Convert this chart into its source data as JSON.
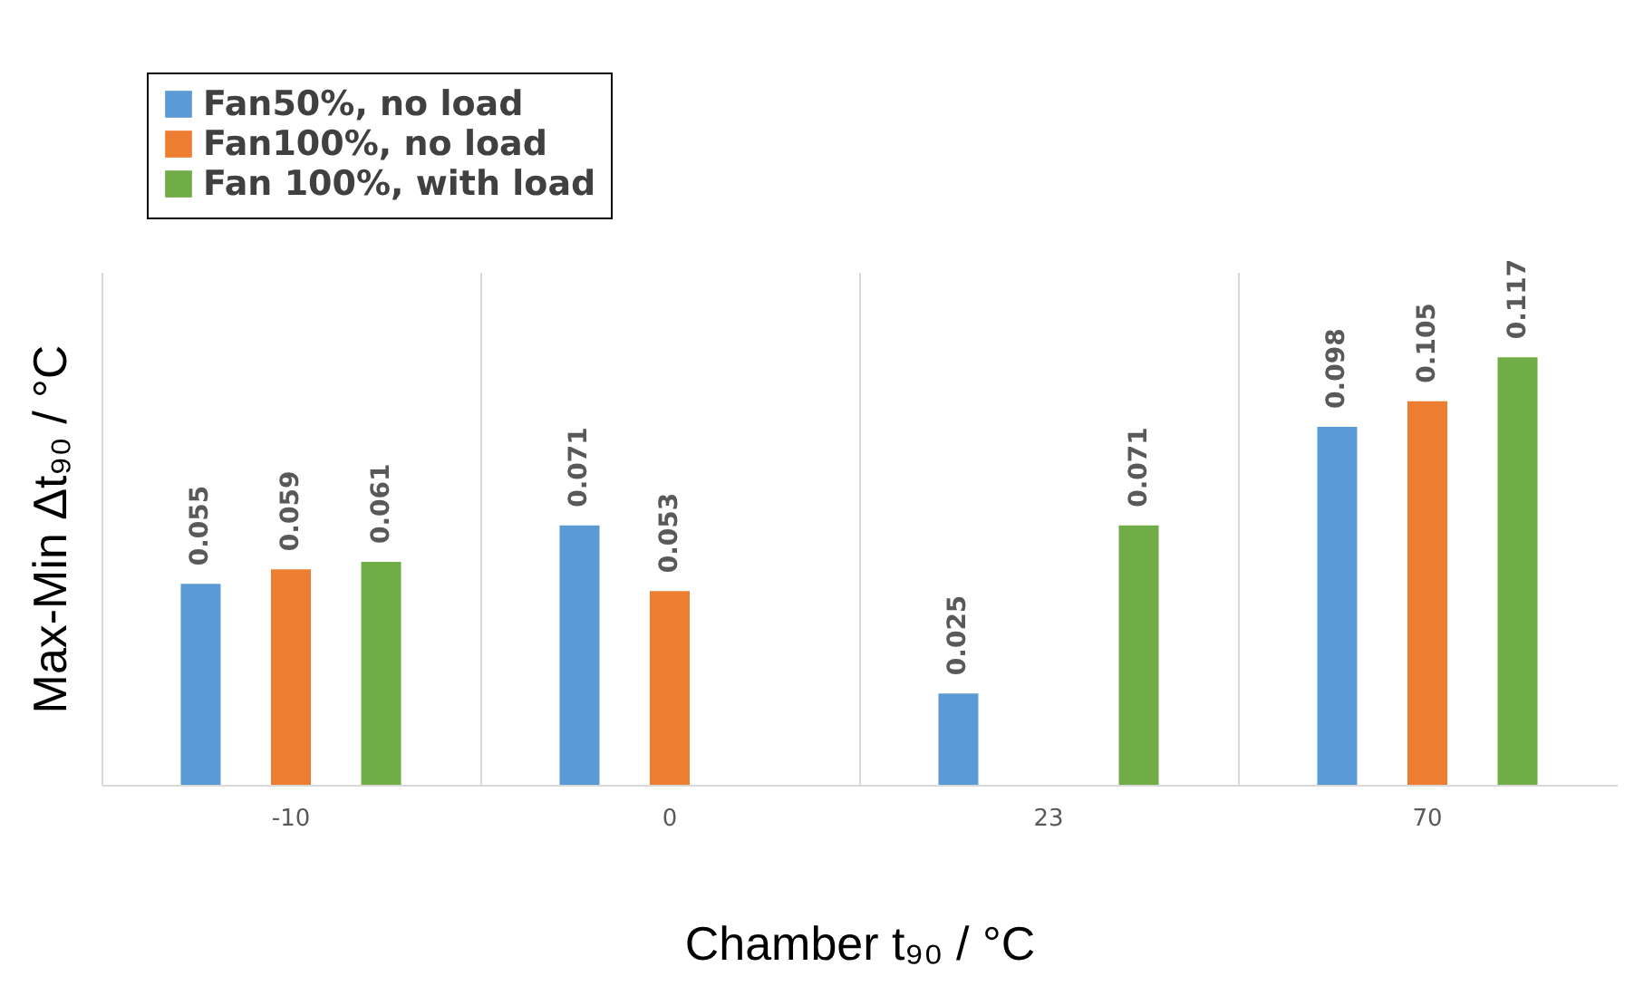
{
  "chart_data": {
    "type": "bar",
    "xlabel": "Chamber t₉₀ / °C",
    "ylabel": "Max-Min Δt₉₀ / °C",
    "categories": [
      "-10",
      "0",
      "23",
      "70"
    ],
    "series": [
      {
        "name": "Fan50%, no load",
        "color": "#5b9bd5",
        "values": [
          0.055,
          0.071,
          0.025,
          0.098
        ]
      },
      {
        "name": "Fan100%, no load",
        "color": "#ed7d31",
        "values": [
          0.059,
          0.053,
          null,
          0.105
        ]
      },
      {
        "name": "Fan 100%, with load",
        "color": "#70ad47",
        "values": [
          0.061,
          null,
          0.071,
          0.117
        ]
      }
    ],
    "data_labels": true,
    "grid": "x",
    "legend": "top left"
  }
}
